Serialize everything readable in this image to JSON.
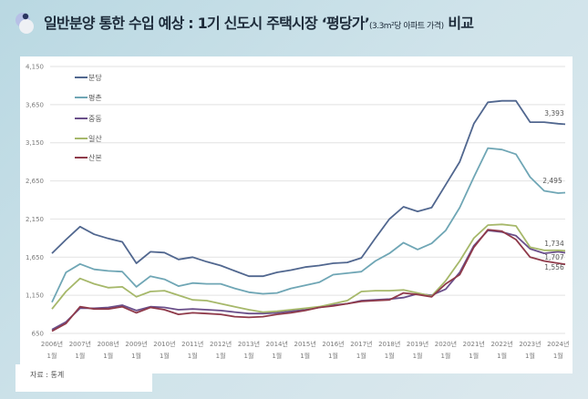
{
  "title": {
    "main": "일반분양 통한 수입 예상 : 1기 신도시 주택시장 ‘평당가’",
    "sub": "(3.3m²당 아파트 가격)",
    "tail": " 비교"
  },
  "source": "자료 : 통계",
  "chart_data": {
    "type": "line",
    "title": "",
    "xlabel": "",
    "ylabel": "",
    "ylim": [
      650,
      4150
    ],
    "yticks": [
      "4,150",
      "3,650",
      "3,150",
      "2,650",
      "2,150",
      "1,650",
      "1,150",
      "650"
    ],
    "ytick_values": [
      4150,
      3650,
      3150,
      2650,
      2150,
      1650,
      1150,
      650
    ],
    "xticks": [
      {
        "year": "2006년",
        "month": "1월"
      },
      {
        "year": "2007년",
        "month": "1월"
      },
      {
        "year": "2008년",
        "month": "1월"
      },
      {
        "year": "2009년",
        "month": "1월"
      },
      {
        "year": "2010년",
        "month": "1월"
      },
      {
        "year": "2011년",
        "month": "1월"
      },
      {
        "year": "2012년",
        "month": "1월"
      },
      {
        "year": "2013년",
        "month": "1월"
      },
      {
        "year": "2014년",
        "month": "1월"
      },
      {
        "year": "2015년",
        "month": "1월"
      },
      {
        "year": "2016년",
        "month": "1월"
      },
      {
        "year": "2017년",
        "month": "1월"
      },
      {
        "year": "2018년",
        "month": "1월"
      },
      {
        "year": "2019년",
        "month": "1월"
      },
      {
        "year": "2020년",
        "month": "1월"
      },
      {
        "year": "2021년",
        "month": "1월"
      },
      {
        "year": "2022년",
        "month": "1월"
      },
      {
        "year": "2023년",
        "month": "1월"
      },
      {
        "year": "2024년",
        "month": "1월"
      }
    ],
    "grid": true,
    "legend": "top-left",
    "x": [
      2006.0,
      2006.5,
      2007.0,
      2007.5,
      2008.0,
      2008.5,
      2009.0,
      2009.5,
      2010.0,
      2010.5,
      2011.0,
      2011.5,
      2012.0,
      2012.5,
      2013.0,
      2013.5,
      2014.0,
      2014.5,
      2015.0,
      2015.5,
      2016.0,
      2016.5,
      2017.0,
      2017.5,
      2018.0,
      2018.5,
      2019.0,
      2019.5,
      2020.0,
      2020.5,
      2021.0,
      2021.5,
      2022.0,
      2022.5,
      2023.0,
      2023.5,
      2024.0,
      2024.25
    ],
    "series": [
      {
        "name": "분당",
        "color": "#51678f",
        "end_label": "3,393",
        "values": [
          1700,
          1880,
          2050,
          1950,
          1895,
          1850,
          1570,
          1720,
          1710,
          1620,
          1650,
          1590,
          1540,
          1470,
          1400,
          1400,
          1450,
          1480,
          1520,
          1540,
          1570,
          1580,
          1640,
          1900,
          2150,
          2310,
          2250,
          2300,
          2600,
          2900,
          3400,
          3680,
          3700,
          3700,
          3420,
          3420,
          3400,
          3393
        ]
      },
      {
        "name": "평촌",
        "color": "#6fa6b5",
        "end_label": "2,495",
        "values": [
          1060,
          1450,
          1560,
          1490,
          1470,
          1460,
          1260,
          1400,
          1360,
          1270,
          1310,
          1300,
          1300,
          1240,
          1190,
          1170,
          1180,
          1240,
          1280,
          1320,
          1420,
          1440,
          1460,
          1600,
          1700,
          1840,
          1750,
          1830,
          2000,
          2300,
          2700,
          3080,
          3060,
          3000,
          2700,
          2520,
          2490,
          2495
        ]
      },
      {
        "name": "중동",
        "color": "#6a4f8a",
        "end_label": "1,707",
        "values": [
          700,
          800,
          980,
          980,
          990,
          1020,
          950,
          1000,
          990,
          960,
          970,
          960,
          950,
          930,
          910,
          910,
          920,
          940,
          960,
          990,
          1020,
          1040,
          1080,
          1090,
          1100,
          1120,
          1170,
          1150,
          1230,
          1450,
          1800,
          2000,
          1980,
          1930,
          1760,
          1700,
          1720,
          1707
        ]
      },
      {
        "name": "일산",
        "color": "#a6b86a",
        "end_label": "1,734",
        "values": [
          970,
          1200,
          1370,
          1300,
          1250,
          1260,
          1130,
          1200,
          1210,
          1150,
          1090,
          1080,
          1040,
          1000,
          960,
          930,
          940,
          960,
          980,
          1000,
          1040,
          1080,
          1200,
          1210,
          1210,
          1220,
          1180,
          1140,
          1340,
          1600,
          1900,
          2070,
          2080,
          2060,
          1780,
          1740,
          1740,
          1734
        ]
      },
      {
        "name": "산본",
        "color": "#8f3a4a",
        "end_label": "1,556",
        "values": [
          680,
          780,
          1000,
          970,
          970,
          1000,
          920,
          990,
          960,
          900,
          920,
          910,
          900,
          870,
          860,
          870,
          900,
          920,
          950,
          990,
          1010,
          1040,
          1070,
          1080,
          1090,
          1180,
          1160,
          1130,
          1300,
          1420,
          1780,
          2010,
          1990,
          1880,
          1650,
          1600,
          1570,
          1556
        ]
      }
    ]
  }
}
